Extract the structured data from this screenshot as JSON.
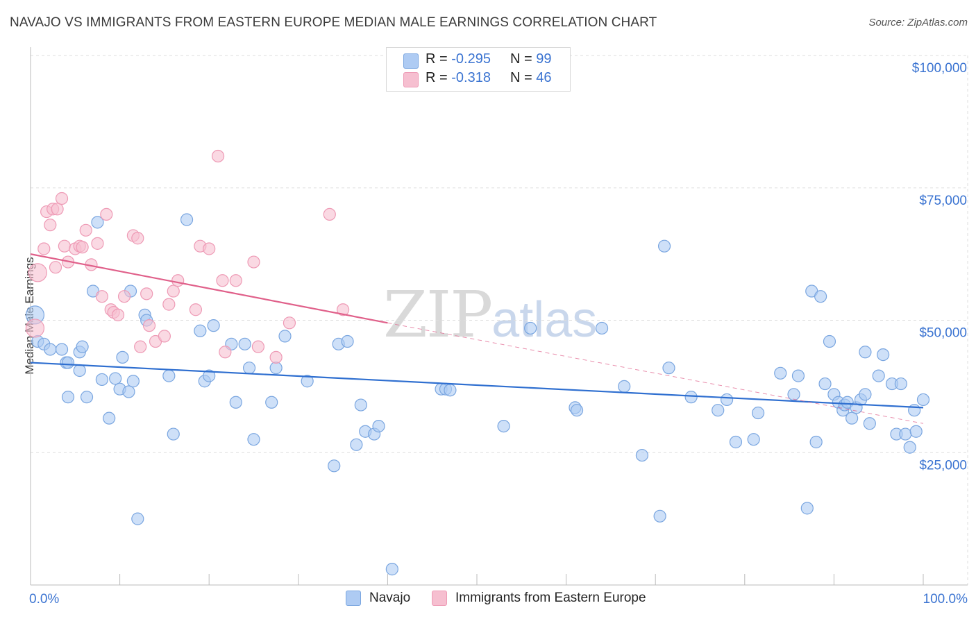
{
  "title": "NAVAJO VS IMMIGRANTS FROM EASTERN EUROPE MEDIAN MALE EARNINGS CORRELATION CHART",
  "source": "Source: ZipAtlas.com",
  "watermark": {
    "main": "ZIP",
    "sub": "atlas"
  },
  "legend": {
    "rows": [
      {
        "r_label": "R = ",
        "r_value": "-0.295",
        "n_label": "N = ",
        "n_value": "99"
      },
      {
        "r_label": "R = ",
        "r_value": "-0.318",
        "n_label": "N = ",
        "n_value": "46"
      }
    ]
  },
  "colors": {
    "navajo_fill": "#aecbf3",
    "navajo_stroke": "#7aa6e0",
    "navajo_line": "#2f6fd0",
    "eeu_fill": "#f6bfd0",
    "eeu_stroke": "#ee9ab5",
    "eeu_line": "#e0608a",
    "axis_text": "#3a73d1",
    "grid": "#dddddd"
  },
  "chart_data": {
    "type": "scatter",
    "xlabel": "",
    "ylabel": "Median Male Earnings",
    "xlim": [
      0,
      100
    ],
    "ylim": [
      0,
      100000
    ],
    "x_tick_labels": [
      "0.0%",
      "100.0%"
    ],
    "y_ticks": [
      25000,
      50000,
      75000,
      100000
    ],
    "y_tick_labels": [
      "$25,000",
      "$50,000",
      "$75,000",
      "$100,000"
    ],
    "grid": true,
    "legend_position": "top-center",
    "series": [
      {
        "name": "Navajo",
        "trend": {
          "x": [
            0,
            100
          ],
          "y": [
            42000,
            33500
          ]
        },
        "points": [
          [
            0.5,
            51000
          ],
          [
            0.8,
            46000
          ],
          [
            1.5,
            45500
          ],
          [
            2.2,
            44500
          ],
          [
            3.5,
            44500
          ],
          [
            4,
            42000
          ],
          [
            4.2,
            42000
          ],
          [
            5.5,
            44000
          ],
          [
            5.5,
            40500
          ],
          [
            5.8,
            45000
          ],
          [
            4.2,
            35500
          ],
          [
            6.3,
            35500
          ],
          [
            7,
            55500
          ],
          [
            7.5,
            68500
          ],
          [
            8,
            38800
          ],
          [
            8.8,
            31500
          ],
          [
            9.5,
            39000
          ],
          [
            10,
            37000
          ],
          [
            10.3,
            43000
          ],
          [
            11.2,
            55500
          ],
          [
            11,
            36500
          ],
          [
            11.5,
            38500
          ],
          [
            12,
            12500
          ],
          [
            12.8,
            51000
          ],
          [
            13,
            50000
          ],
          [
            15.5,
            39500
          ],
          [
            16,
            28500
          ],
          [
            17.5,
            69000
          ],
          [
            19,
            48000
          ],
          [
            19.5,
            38500
          ],
          [
            20,
            39500
          ],
          [
            20.5,
            49000
          ],
          [
            22.5,
            45500
          ],
          [
            23,
            34500
          ],
          [
            24,
            45500
          ],
          [
            24.5,
            41000
          ],
          [
            25,
            27500
          ],
          [
            27,
            34500
          ],
          [
            27.5,
            41000
          ],
          [
            28.5,
            47000
          ],
          [
            31,
            38500
          ],
          [
            34,
            22500
          ],
          [
            34.5,
            45500
          ],
          [
            35.5,
            46000
          ],
          [
            36.5,
            26500
          ],
          [
            37,
            34000
          ],
          [
            37.5,
            29000
          ],
          [
            38.5,
            28500
          ],
          [
            39,
            30000
          ],
          [
            40.5,
            3000
          ],
          [
            46,
            37000
          ],
          [
            46.5,
            37000
          ],
          [
            47,
            36800
          ],
          [
            53,
            30000
          ],
          [
            56,
            48500
          ],
          [
            61,
            33500
          ],
          [
            61.2,
            33000
          ],
          [
            64,
            48500
          ],
          [
            66.5,
            37500
          ],
          [
            68.5,
            24500
          ],
          [
            70.5,
            13000
          ],
          [
            71,
            64000
          ],
          [
            71.5,
            41000
          ],
          [
            74,
            35500
          ],
          [
            77,
            33000
          ],
          [
            78,
            35000
          ],
          [
            79,
            27000
          ],
          [
            81,
            27500
          ],
          [
            81.5,
            32500
          ],
          [
            84,
            40000
          ],
          [
            85.5,
            36000
          ],
          [
            86,
            39500
          ],
          [
            87,
            14500
          ],
          [
            87.5,
            55500
          ],
          [
            88.5,
            54500
          ],
          [
            88,
            27000
          ],
          [
            89,
            38000
          ],
          [
            89.5,
            46000
          ],
          [
            90,
            36000
          ],
          [
            90.5,
            34500
          ],
          [
            91,
            33000
          ],
          [
            91.2,
            34000
          ],
          [
            91.5,
            34500
          ],
          [
            92,
            31500
          ],
          [
            92.5,
            33500
          ],
          [
            93,
            35000
          ],
          [
            93.5,
            36000
          ],
          [
            93.5,
            44000
          ],
          [
            94,
            30500
          ],
          [
            95,
            39500
          ],
          [
            95.5,
            43500
          ],
          [
            96.5,
            38000
          ],
          [
            97,
            28500
          ],
          [
            97.5,
            38000
          ],
          [
            98,
            28500
          ],
          [
            98.5,
            26000
          ],
          [
            99,
            33000
          ],
          [
            99.2,
            29000
          ],
          [
            100,
            35000
          ]
        ]
      },
      {
        "name": "Immigrants from Eastern Europe",
        "trend": {
          "x": [
            0,
            40
          ],
          "y": [
            62500,
            49500
          ]
        },
        "trend_dashed": {
          "x": [
            40,
            100
          ],
          "y": [
            49500,
            30500
          ]
        },
        "points": [
          [
            0.5,
            48500
          ],
          [
            0.8,
            59000
          ],
          [
            1.5,
            63500
          ],
          [
            1.8,
            70500
          ],
          [
            2.2,
            68000
          ],
          [
            2.5,
            71000
          ],
          [
            2.8,
            60000
          ],
          [
            3,
            71000
          ],
          [
            3.5,
            73000
          ],
          [
            3.8,
            64000
          ],
          [
            4.2,
            61000
          ],
          [
            5,
            63500
          ],
          [
            5.5,
            64000
          ],
          [
            5.8,
            63800
          ],
          [
            6.2,
            67000
          ],
          [
            6.8,
            60500
          ],
          [
            7.5,
            64500
          ],
          [
            8,
            54500
          ],
          [
            8.5,
            70000
          ],
          [
            9,
            52000
          ],
          [
            9.3,
            51500
          ],
          [
            9.8,
            51000
          ],
          [
            10.5,
            54500
          ],
          [
            11.5,
            66000
          ],
          [
            12,
            65500
          ],
          [
            12.3,
            45000
          ],
          [
            13,
            55000
          ],
          [
            13.3,
            49000
          ],
          [
            14,
            46000
          ],
          [
            15,
            47000
          ],
          [
            15.5,
            53000
          ],
          [
            16,
            55500
          ],
          [
            16.5,
            57500
          ],
          [
            18.5,
            52000
          ],
          [
            19,
            64000
          ],
          [
            20,
            63500
          ],
          [
            21,
            81000
          ],
          [
            21.5,
            57500
          ],
          [
            21.8,
            44000
          ],
          [
            23,
            57500
          ],
          [
            25,
            61000
          ],
          [
            25.5,
            45000
          ],
          [
            27.5,
            43000
          ],
          [
            29,
            49500
          ],
          [
            33.5,
            70000
          ],
          [
            35,
            52000
          ]
        ]
      }
    ]
  }
}
